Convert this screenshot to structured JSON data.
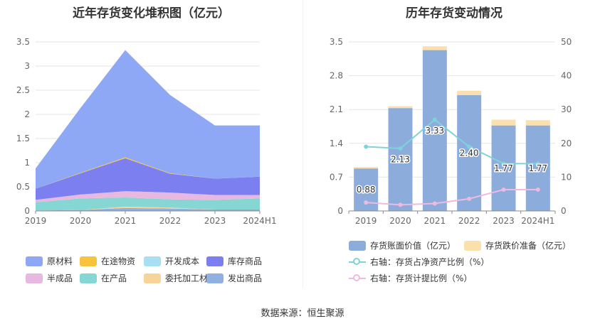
{
  "left": {
    "title": "近年存货变化堆积图（亿元）",
    "legend": [
      {
        "label": "原材料",
        "color": "#8fa8f5"
      },
      {
        "label": "在途物资",
        "color": "#f8c43c"
      },
      {
        "label": "开发成本",
        "color": "#a9dff5"
      },
      {
        "label": "库存商品",
        "color": "#7b7ff0"
      },
      {
        "label": "半成品",
        "color": "#e8b9e0"
      },
      {
        "label": "在产品",
        "color": "#86d6d4"
      },
      {
        "label": "委托加工材料",
        "color": "#f7d49a"
      },
      {
        "label": "发出商品",
        "color": "#8fb0e0"
      }
    ]
  },
  "right": {
    "title": "历年存货变动情况",
    "legend": {
      "bar1": "存货账面价值（亿元）",
      "bar2": "存货跌价准备（亿元）",
      "line1": "右轴：存货占净资产比例（%）",
      "line2": "右轴：存货计提比例（%）"
    }
  },
  "footer": "数据来源：恒生聚源",
  "chart_data": [
    {
      "type": "area",
      "stacked": true,
      "title": "近年存货变化堆积图（亿元）",
      "categories": [
        "2019",
        "2020",
        "2021",
        "2022",
        "2023",
        "2024H1"
      ],
      "ylim": [
        0,
        3.5
      ],
      "yticks": [
        0,
        0.5,
        1,
        1.5,
        2,
        2.5,
        3,
        3.5
      ],
      "ytick_labels": [
        "0",
        "0.5",
        "1",
        "1.5",
        "2",
        "2.5",
        "3",
        "3.5"
      ],
      "series": [
        {
          "name": "发出商品",
          "color": "#8fb0e0",
          "values": [
            0.01,
            0.02,
            0.06,
            0.05,
            0.03,
            0.03
          ]
        },
        {
          "name": "委托加工材料",
          "color": "#f7d49a",
          "values": [
            0.0,
            0.0,
            0.03,
            0.02,
            0.0,
            0.0
          ]
        },
        {
          "name": "在产品",
          "color": "#86d6d4",
          "values": [
            0.17,
            0.24,
            0.19,
            0.17,
            0.2,
            0.23
          ]
        },
        {
          "name": "半成品",
          "color": "#e8b9e0",
          "values": [
            0.05,
            0.08,
            0.13,
            0.14,
            0.1,
            0.07
          ]
        },
        {
          "name": "库存商品",
          "color": "#7b7ff0",
          "values": [
            0.23,
            0.44,
            0.68,
            0.39,
            0.34,
            0.38
          ]
        },
        {
          "name": "开发成本",
          "color": "#a9dff5",
          "values": [
            0.0,
            0.0,
            0.0,
            0.0,
            0.0,
            0.0
          ]
        },
        {
          "name": "在途物资",
          "color": "#f8c43c",
          "values": [
            0.0,
            0.01,
            0.02,
            0.01,
            0.0,
            0.0
          ]
        },
        {
          "name": "原材料",
          "color": "#8fa8f5",
          "values": [
            0.42,
            1.34,
            2.22,
            1.62,
            1.1,
            1.06
          ]
        }
      ]
    },
    {
      "type": "bar",
      "stacked": true,
      "title": "历年存货变动情况",
      "categories": [
        "2019",
        "2020",
        "2021",
        "2022",
        "2023",
        "2024H1"
      ],
      "ylim": [
        0,
        3.5
      ],
      "yticks": [
        0,
        0.7,
        1.4,
        2.1,
        2.8,
        3.5
      ],
      "ytick_labels": [
        "0",
        "0.7",
        "1.4",
        "2.1",
        "2.8",
        "3.5"
      ],
      "y2lim": [
        0,
        50
      ],
      "y2ticks": [
        0,
        10,
        20,
        30,
        40,
        50
      ],
      "series": [
        {
          "name": "存货账面价值（亿元）",
          "type": "bar",
          "color": "#8cacdc",
          "values": [
            0.88,
            2.13,
            3.33,
            2.4,
            1.77,
            1.77
          ],
          "labels": [
            "0.88",
            "2.13",
            "3.33",
            "2.40",
            "1.77",
            "1.77"
          ]
        },
        {
          "name": "存货跌价准备（亿元）",
          "type": "bar",
          "color": "#fbe0ae",
          "values": [
            0.03,
            0.04,
            0.08,
            0.09,
            0.12,
            0.11
          ]
        },
        {
          "name": "右轴：存货占净资产比例（%）",
          "type": "line",
          "axis": "right",
          "color": "#7fd3d8",
          "values": [
            19.0,
            18.5,
            27.0,
            19.0,
            14.0,
            14.0
          ]
        },
        {
          "name": "右轴：存货计提比例（%）",
          "type": "line",
          "axis": "right",
          "color": "#eebadf",
          "values": [
            2.5,
            1.8,
            2.2,
            3.6,
            6.3,
            6.3
          ]
        }
      ]
    }
  ]
}
